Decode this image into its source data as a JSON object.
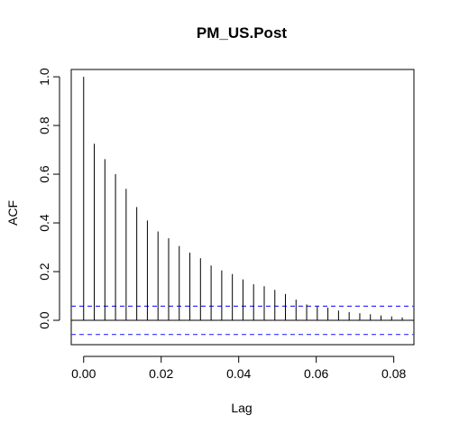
{
  "chart_data": {
    "type": "bar",
    "title": "PM_US.Post",
    "xlabel": "Lag",
    "ylabel": "ACF",
    "xlim": [
      -0.0032,
      0.0852
    ],
    "ylim": [
      -0.1,
      1.03
    ],
    "x_ticks": [
      {
        "value": 0.0,
        "label": "0.00"
      },
      {
        "value": 0.02,
        "label": "0.02"
      },
      {
        "value": 0.04,
        "label": "0.04"
      },
      {
        "value": 0.06,
        "label": "0.06"
      },
      {
        "value": 0.08,
        "label": "0.08"
      }
    ],
    "y_ticks": [
      {
        "value": 0.0,
        "label": "0.0"
      },
      {
        "value": 0.2,
        "label": "0.2"
      },
      {
        "value": 0.4,
        "label": "0.4"
      },
      {
        "value": 0.6,
        "label": "0.6"
      },
      {
        "value": 0.8,
        "label": "0.8"
      },
      {
        "value": 1.0,
        "label": "1.0"
      }
    ],
    "lags": [
      0.0,
      0.00274,
      0.00548,
      0.00822,
      0.01096,
      0.0137,
      0.01644,
      0.01918,
      0.02192,
      0.02466,
      0.0274,
      0.03014,
      0.03288,
      0.03562,
      0.03836,
      0.0411,
      0.04384,
      0.04658,
      0.04932,
      0.05205,
      0.05479,
      0.05753,
      0.06027,
      0.06301,
      0.06575,
      0.06849,
      0.07123,
      0.07397,
      0.07671,
      0.07945,
      0.08219
    ],
    "acf": [
      1.0,
      0.725,
      0.662,
      0.6,
      0.54,
      0.465,
      0.41,
      0.365,
      0.337,
      0.305,
      0.278,
      0.255,
      0.225,
      0.205,
      0.19,
      0.168,
      0.148,
      0.14,
      0.125,
      0.108,
      0.085,
      0.065,
      0.058,
      0.052,
      0.04,
      0.034,
      0.029,
      0.025,
      0.02,
      0.016,
      0.012
    ],
    "confidence_bound": 0.058,
    "confidence_color": "#3333ff",
    "bar_color": "#000000",
    "grid": false,
    "legend": "none"
  }
}
